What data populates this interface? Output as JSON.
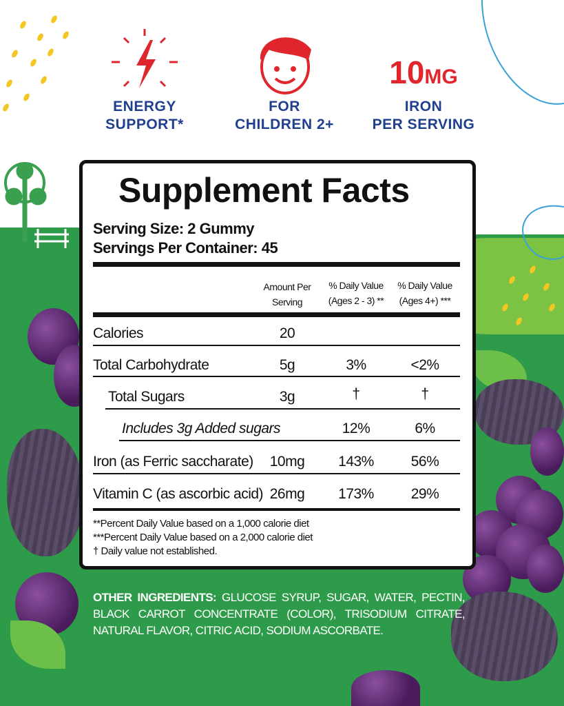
{
  "features": [
    {
      "icon": "lightning-icon",
      "label_line1": "ENERGY",
      "label_line2": "SUPPORT*"
    },
    {
      "icon": "child-face-icon",
      "label_line1": "FOR",
      "label_line2": "CHILDREN 2+"
    },
    {
      "big_value": "10",
      "big_unit": "MG",
      "label_line1": "IRON",
      "label_line2": "PER SERVING"
    }
  ],
  "colors": {
    "accent_red": "#e0262d",
    "label_blue": "#1f3f8f",
    "green": "#2e9b4a"
  },
  "facts": {
    "title": "Supplement Facts",
    "serving_size": "Serving Size: 2 Gummy",
    "servings_per_container": "Servings Per Container: 45",
    "headers": {
      "amount_1": "Amount Per",
      "amount_2": "Serving",
      "dv1_1": "% Daily Value",
      "dv1_2": "(Ages 2 - 3) **",
      "dv2_1": "% Daily Value",
      "dv2_2": "(Ages 4+) ***"
    },
    "rows": [
      {
        "name": "Calories",
        "amount": "20",
        "dv1": "",
        "dv2": ""
      },
      {
        "name": "Total Carbohydrate",
        "amount": "5g",
        "dv1": "3%",
        "dv2": "<2%"
      },
      {
        "name": "Total Sugars",
        "amount": "3g",
        "dv1": "†",
        "dv2": "†"
      },
      {
        "name": "Includes 3g Added sugars",
        "amount": "",
        "dv1": "12%",
        "dv2": "6%"
      },
      {
        "name": "Iron (as Ferric saccharate)",
        "amount": "10mg",
        "dv1": "143%",
        "dv2": "56%"
      },
      {
        "name": "Vitamin C (as ascorbic acid)",
        "amount": "26mg",
        "dv1": "173%",
        "dv2": "29%"
      }
    ],
    "footnotes": [
      "**Percent Daily Value based on a 1,000 calorie diet",
      "***Percent Daily Value based on a 2,000 calorie diet",
      "† Daily value not established."
    ]
  },
  "ingredients": {
    "label": "OTHER INGREDIENTS:",
    "text": " GLUCOSE SYRUP, SUGAR, WATER, PECTIN, BLACK CARROT CONCENTRATE (COLOR), TRISODIUM CITRATE, NATURAL FLAVOR, CITRIC ACID, SODIUM ASCORBATE."
  }
}
